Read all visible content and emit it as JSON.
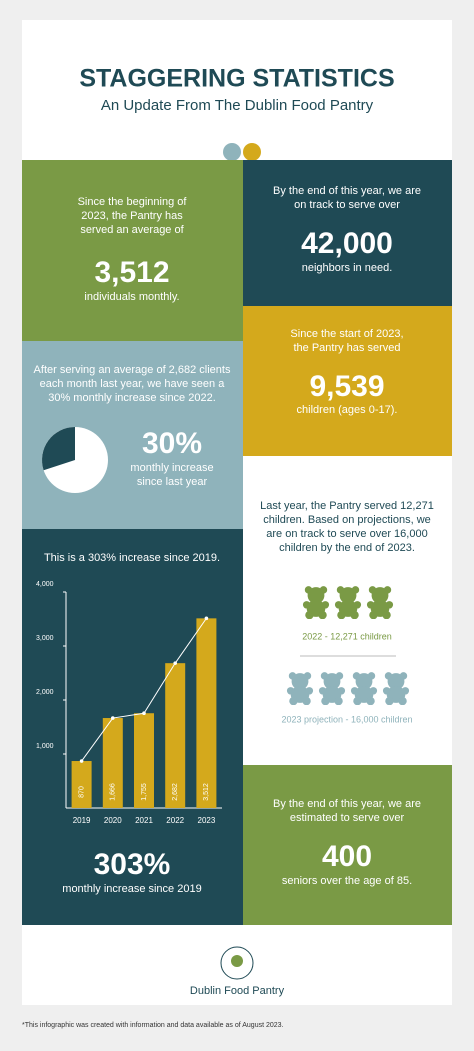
{
  "header": {
    "title": "STAGGERING STATISTICS",
    "subtitle": "An Update From The Dublin Food Pantry"
  },
  "served_average": {
    "lines": [
      "Since the beginning of",
      "2023, the Pantry has",
      "served an average of"
    ],
    "stat": "3,512",
    "caption": "individuals monthly."
  },
  "neighbors": {
    "lines": [
      "By the end of this year, we are",
      "on track to serve over"
    ],
    "stat": "42,000",
    "caption": "neighbors in need."
  },
  "increase": {
    "lines": [
      "After serving an average of 2,682 clients",
      "each month last year, we have seen a",
      "30% monthly increase since 2022."
    ],
    "percent": {
      "value": 30,
      "label": "30%"
    },
    "caption_lines": [
      "monthly increase",
      "since last year"
    ]
  },
  "children": {
    "lines": [
      "Since the start of 2023,",
      "the Pantry has served"
    ],
    "stat": "9,539",
    "caption": "children (ages 0-17)."
  },
  "growth": {
    "heading": "This is a 303% increase since 2019.",
    "chart": {
      "type": "bar",
      "categories": [
        "2019",
        "2020",
        "2021",
        "2022",
        "2023"
      ],
      "values": [
        870,
        1666,
        1755,
        2682,
        3512
      ],
      "value_labels": [
        "870",
        "1,666",
        "1,755",
        "2,682",
        "3,512"
      ],
      "color": "#d4a91c",
      "line_color": "#ffffff",
      "ylim": [
        0,
        4000
      ],
      "yticks": [
        {
          "value": 1000,
          "label": "1,000"
        },
        {
          "value": 2000,
          "label": "2,000"
        },
        {
          "value": 3000,
          "label": "3,000"
        },
        {
          "value": 4000,
          "label": "4,000"
        }
      ]
    },
    "stat": "303%",
    "caption": "monthly increase since 2019"
  },
  "projection": {
    "lines": [
      "Last year, the Pantry served 12,271",
      "children. Based on projections, we",
      "are on track to serve over 16,000",
      "children by the end of 2023."
    ],
    "legend_2022": "2022 - 12,271 children",
    "legend_2023": "2023 projection - 16,000 children"
  },
  "seniors": {
    "lines": [
      "By the end of this year, we are",
      "estimated to serve over"
    ],
    "stat": "400",
    "caption": "seniors over the age of 85."
  },
  "footer": {
    "organization": "Dublin Food Pantry",
    "note": "*This infographic was created with information and data available as of August 2023."
  }
}
